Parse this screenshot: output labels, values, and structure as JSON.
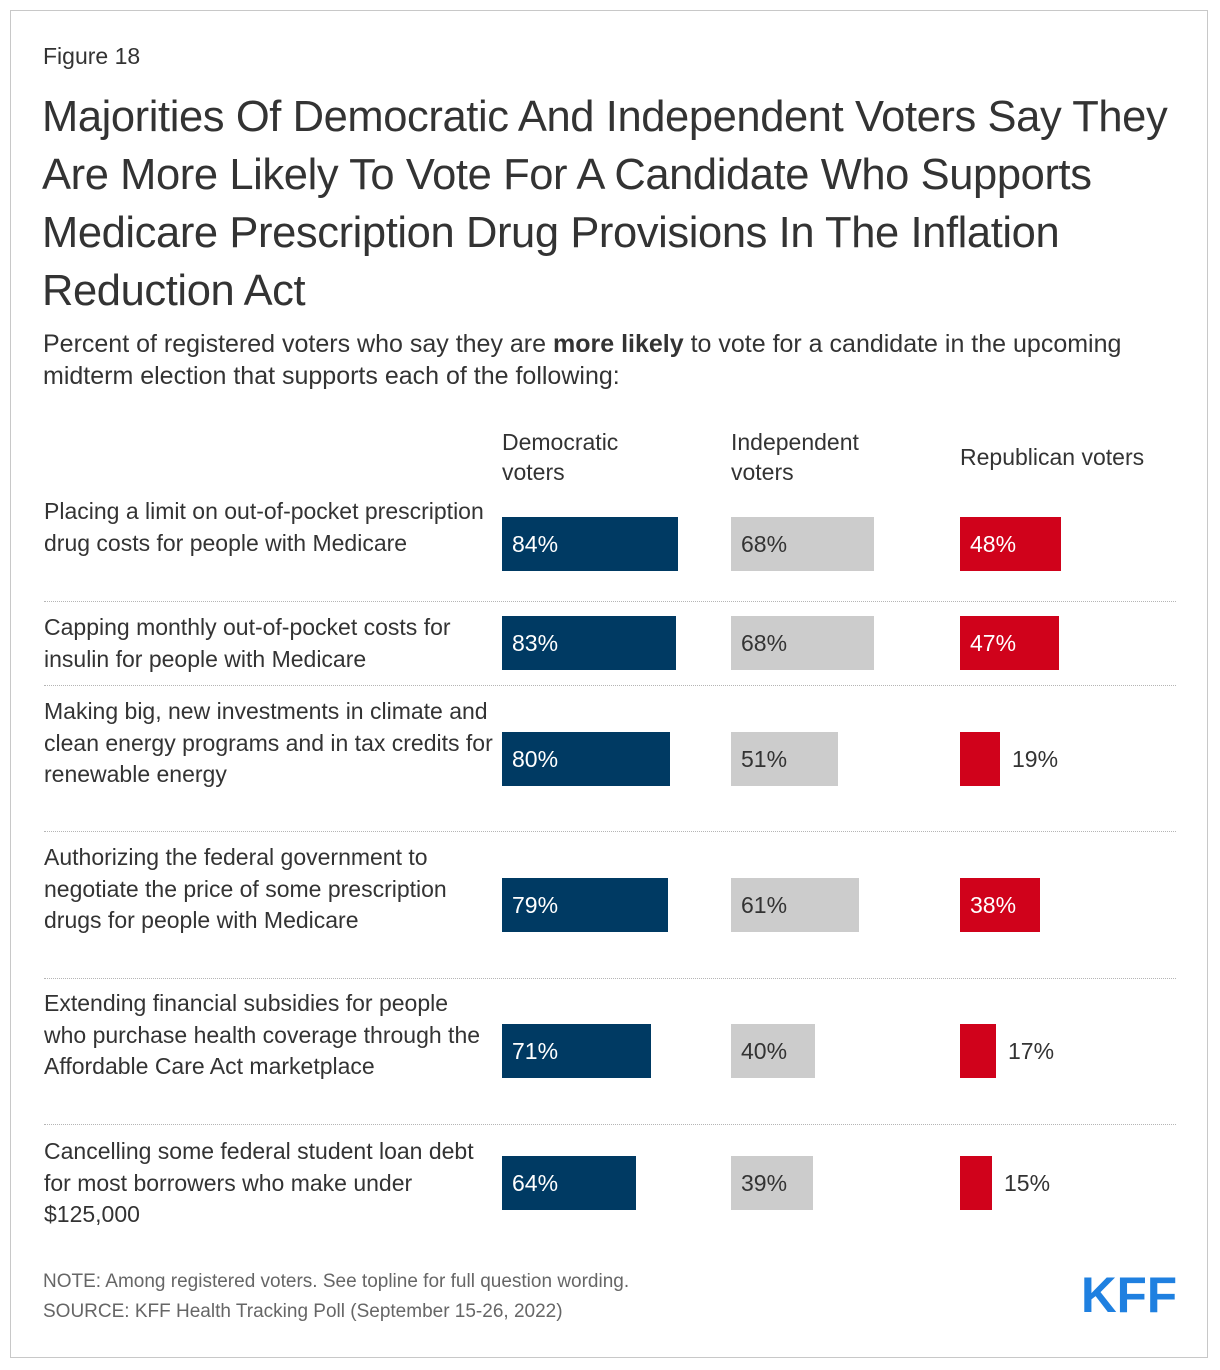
{
  "figure_label": "Figure 18",
  "title": "Majorities Of Democratic And Independent Voters Say They Are More Likely To Vote For A Candidate Who Supports Medicare Prescription Drug Provisions In The Inflation Reduction Act",
  "subtitle": {
    "before": "Percent of registered voters who say they are ",
    "bold": "more likely",
    "after": " to vote for a candidate in the upcoming midterm election that supports each of the following:"
  },
  "colors": {
    "democratic": "#003a63",
    "independent": "#cccccc",
    "republican": "#d0021b",
    "label_on_dark": "#ffffff",
    "label_on_light": "#333333",
    "logo": "#1f80e0"
  },
  "chart_data": {
    "type": "bar",
    "orientation": "horizontal",
    "unit": "%",
    "xlim": [
      0,
      100
    ],
    "categories": [
      "Placing a limit on out-of-pocket prescription drug costs for people with Medicare",
      "Capping monthly out-of-pocket costs for insulin for people with Medicare",
      "Making big, new investments in climate and clean energy programs and in tax credits for renewable energy",
      "Authorizing the federal government to negotiate the price of some prescription drugs for people with Medicare",
      "Extending financial subsidies for people who purchase health coverage through the Affordable Care Act marketplace",
      "Cancelling some federal student loan debt for most borrowers who make under $125,000"
    ],
    "series": [
      {
        "name": "Democratic voters",
        "values": [
          84,
          83,
          80,
          79,
          71,
          64
        ]
      },
      {
        "name": "Independent voters",
        "values": [
          68,
          68,
          51,
          61,
          40,
          39
        ]
      },
      {
        "name": "Republican voters",
        "values": [
          48,
          47,
          19,
          38,
          17,
          15
        ]
      }
    ]
  },
  "note": "NOTE: Among registered voters. See topline for full question wording.",
  "source": "SOURCE: KFF Health Tracking Poll (September 15-26, 2022)",
  "logo_text": "KFF"
}
